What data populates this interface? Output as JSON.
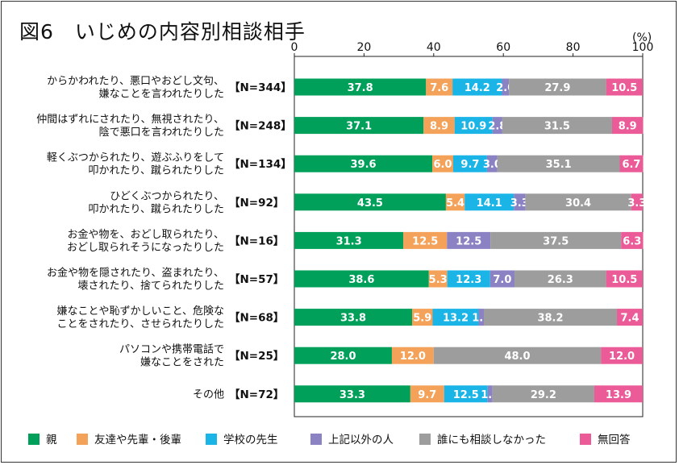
{
  "title": "図6　いじめの内容別相談相手",
  "unit": "(%)",
  "colors": {
    "親": "#00a05a",
    "友達や先輩・後輩": "#f4a259",
    "学校の先生": "#1ab4e6",
    "上記以外の人": "#8b82c4",
    "誰にも相談しなかった": "#9d9d9d",
    "無回答": "#ea5b97"
  },
  "chart_data": {
    "type": "bar",
    "orientation": "horizontal",
    "stacked": true,
    "xlim": [
      0,
      100
    ],
    "xticks": [
      0,
      20,
      40,
      60,
      80,
      100
    ],
    "legend_position": "bottom",
    "categories": [
      [
        "からかわれたり、悪口やおどし文句、",
        "嫌なことを言われたりした"
      ],
      [
        "仲間はずれにされたり、無視されたり、",
        "陰で悪口を言われたりした"
      ],
      [
        "軽くぶつかられたり、遊ぶふりをして",
        "叩かれたり、蹴られたりした"
      ],
      [
        "ひどくぶつかられたり、",
        "叩かれたり、蹴られたりした"
      ],
      [
        "お金や物を、おどし取られたり、",
        "おどし取られそうになったりした"
      ],
      [
        "お金や物を隠されたり、盗まれたり、",
        "壊されたり、捨てられたりした"
      ],
      [
        "嫌なことや恥ずかしいこと、危険な",
        "ことをされたり、させられたりした"
      ],
      [
        "パソコンや携帯電話で",
        "嫌なことをされた"
      ],
      [
        "その他"
      ]
    ],
    "n_labels": [
      "【N=344】",
      "【N=248】",
      "【N=134】",
      "【N=92】",
      "【N=16】",
      "【N=57】",
      "【N=68】",
      "【N=25】",
      "【N=72】"
    ],
    "series": [
      {
        "name": "親",
        "values": [
          37.8,
          37.1,
          39.6,
          43.5,
          31.3,
          38.6,
          33.8,
          28.0,
          33.3
        ]
      },
      {
        "name": "友達や先輩・後輩",
        "values": [
          7.6,
          8.9,
          6.0,
          5.4,
          12.5,
          5.3,
          5.9,
          12.0,
          9.7
        ]
      },
      {
        "name": "学校の先生",
        "values": [
          14.2,
          10.9,
          9.7,
          14.1,
          0,
          12.3,
          13.2,
          0,
          12.5
        ]
      },
      {
        "name": "上記以外の人",
        "values": [
          2.0,
          2.8,
          3.0,
          3.3,
          12.5,
          7.0,
          1.5,
          0,
          1.4
        ]
      },
      {
        "name": "誰にも相談しなかった",
        "values": [
          27.9,
          31.5,
          35.1,
          30.4,
          37.5,
          26.3,
          38.2,
          48.0,
          29.2
        ]
      },
      {
        "name": "無回答",
        "values": [
          10.5,
          8.9,
          6.7,
          3.3,
          6.3,
          10.5,
          7.4,
          12.0,
          13.9
        ]
      }
    ]
  }
}
